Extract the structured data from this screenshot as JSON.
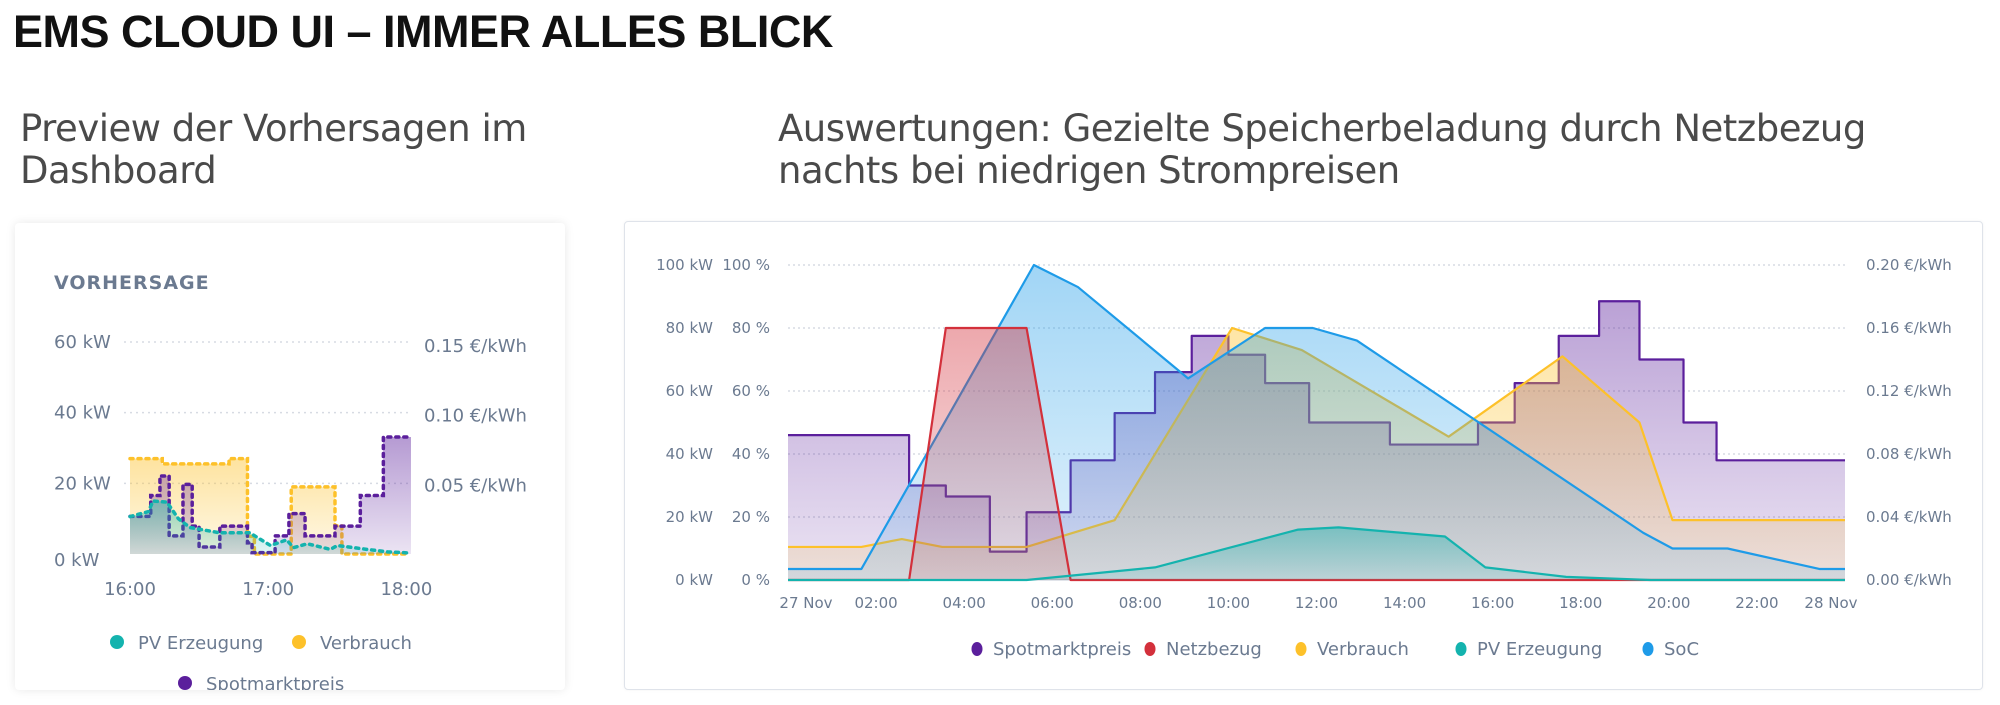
{
  "page": {
    "title": "EMS CLOUD UI – IMMER ALLES BLICK",
    "left_heading": [
      "Preview der Vorhersagen im",
      "Dashboard"
    ],
    "right_heading": [
      "Auswertungen: Gezielte Speicherbeladung durch Netzbezug",
      "nachts bei niedrigen Strompreisen"
    ]
  },
  "colors": {
    "pv": "#14b3ae",
    "verbrauch": "#fdc12a",
    "spot": "#5b1f9c",
    "netz": "#d3303b",
    "soc": "#1e9be8",
    "grid": "#d7dbe3",
    "text": "#6b7a90"
  },
  "chart_data": [
    {
      "type": "area",
      "title": "VORHERSAGE",
      "style": "dotted step lines with filled areas",
      "xticks": [
        "16:00",
        "17:00",
        "18:00"
      ],
      "y_left": {
        "ticks": [
          "0 kW",
          "20 kW",
          "40 kW",
          "60 kW"
        ],
        "range": [
          0,
          60
        ],
        "unit": "kW"
      },
      "y_right": {
        "ticks": [
          "0.05 €/kWh",
          "0.10 €/kWh",
          "0.15 €/kWh"
        ],
        "range": [
          0,
          0.15
        ],
        "unit": "€/kWh"
      },
      "grid": true,
      "legend": {
        "placement": "bottom",
        "items": [
          "PV Erzeugung",
          "Verbrauch",
          "Spotmarktpreis"
        ]
      },
      "series": [
        {
          "name": "Verbrauch",
          "axis": "left",
          "step": true,
          "color_key": "verbrauch",
          "x": [
            "16:00",
            "16:14",
            "16:43",
            "16:51",
            "16:54",
            "17:10",
            "17:29",
            "17:32",
            "18:00"
          ],
          "y": [
            27,
            25.5,
            27,
            5,
            0,
            19,
            8,
            0,
            0
          ]
        },
        {
          "name": "Spotmarktpreis",
          "axis": "right",
          "step": true,
          "color_key": "spot",
          "x": [
            "16:00",
            "16:09",
            "16:13",
            "16:17",
            "16:23",
            "16:27",
            "16:30",
            "16:39",
            "16:51",
            "16:53",
            "17:03",
            "17:09",
            "17:16",
            "17:29",
            "17:40",
            "17:50",
            "18:02"
          ],
          "y": [
            0.027,
            0.042,
            0.056,
            0.013,
            0.05,
            0.02,
            0.005,
            0.02,
            0.008,
            0.001,
            0.013,
            0.029,
            0.013,
            0.02,
            0.042,
            0.084,
            0.084
          ]
        },
        {
          "name": "PV Erzeugung",
          "axis": "left",
          "step": false,
          "color_key": "pv",
          "x": [
            "16:00",
            "16:08",
            "16:10",
            "16:16",
            "16:21",
            "16:26",
            "16:39",
            "16:52",
            "17:01",
            "17:08",
            "17:11",
            "17:17",
            "17:27",
            "17:30",
            "17:43",
            "17:52",
            "18:01"
          ],
          "y": [
            10.6,
            12,
            15,
            14.7,
            10,
            7.5,
            6,
            6,
            2.4,
            4,
            1.8,
            2.9,
            1.3,
            2.4,
            1.3,
            0.6,
            0.3
          ]
        }
      ]
    },
    {
      "type": "area",
      "xticks": [
        "27 Nov",
        "02:00",
        "04:00",
        "06:00",
        "08:00",
        "10:00",
        "12:00",
        "14:00",
        "16:00",
        "18:00",
        "20:00",
        "22:00",
        "28 Nov"
      ],
      "y_left_kw": {
        "ticks": [
          "0 kW",
          "20 kW",
          "40 kW",
          "60 kW",
          "80 kW",
          "100 kW"
        ],
        "range": [
          0,
          100
        ]
      },
      "y_left_pct": {
        "ticks": [
          "0 %",
          "20 %",
          "40 %",
          "60 %",
          "80 %",
          "100 %"
        ],
        "range": [
          0,
          100
        ]
      },
      "y_right": {
        "ticks": [
          "0.00 €/kWh",
          "0.04 €/kWh",
          "0.08 €/kWh",
          "0.12 €/kWh",
          "0.16 €/kWh",
          "0.20 €/kWh"
        ],
        "range": [
          0,
          0.2
        ]
      },
      "grid": true,
      "legend": {
        "placement": "bottom",
        "items": [
          "Spotmarktpreis",
          "Netzbezug",
          "Verbrauch",
          "PV Erzeugung",
          "SoC"
        ]
      },
      "series": [
        {
          "name": "Spotmarktpreis",
          "axis": "price",
          "step": true,
          "color_key": "spot",
          "x": [
            "00:00",
            "02:45",
            "03:35",
            "04:35",
            "05:25",
            "06:25",
            "07:25",
            "08:20",
            "09:10",
            "10:00",
            "10:50",
            "11:50",
            "13:40",
            "15:40",
            "16:30",
            "17:30",
            "18:25",
            "19:20",
            "20:20",
            "21:05",
            "24:00"
          ],
          "y": [
            0.092,
            0.06,
            0.053,
            0.018,
            0.043,
            0.076,
            0.106,
            0.132,
            0.155,
            0.143,
            0.125,
            0.1,
            0.086,
            0.1,
            0.125,
            0.155,
            0.177,
            0.14,
            0.1,
            0.076,
            0.076
          ]
        },
        {
          "name": "Verbrauch",
          "axis": "kW",
          "step": false,
          "color_key": "verbrauch",
          "x": [
            "00:00",
            "01:40",
            "02:35",
            "03:30",
            "05:25",
            "07:25",
            "10:05",
            "11:40",
            "15:00",
            "17:35",
            "19:20",
            "20:05",
            "24:00"
          ],
          "y": [
            10.5,
            10.5,
            13,
            10.5,
            10.5,
            19,
            80,
            73,
            45.5,
            71,
            50,
            19,
            19
          ]
        },
        {
          "name": "SoC",
          "axis": "%",
          "step": false,
          "color_key": "soc",
          "x": [
            "00:00",
            "01:40",
            "05:35",
            "06:35",
            "09:05",
            "10:50",
            "11:55",
            "12:55",
            "19:25",
            "20:05",
            "21:20",
            "23:25",
            "24:00"
          ],
          "y": [
            3.5,
            3.5,
            100,
            93,
            64,
            80,
            80,
            76,
            15,
            10,
            10,
            3.5,
            3.5
          ]
        },
        {
          "name": "Netzbezug",
          "axis": "kW",
          "step": false,
          "color_key": "netz",
          "x": [
            "00:00",
            "02:45",
            "03:35",
            "05:25",
            "06:25",
            "24:00"
          ],
          "y": [
            0,
            0,
            80,
            80,
            0,
            0
          ]
        },
        {
          "name": "PV Erzeugung",
          "axis": "kW",
          "step": false,
          "color_key": "pv",
          "x": [
            "00:00",
            "05:25",
            "08:20",
            "11:35",
            "12:30",
            "14:55",
            "15:50",
            "17:40",
            "19:35",
            "24:00"
          ],
          "y": [
            0,
            0,
            4,
            16,
            16.7,
            13.8,
            4,
            1,
            0,
            0
          ]
        }
      ]
    }
  ]
}
